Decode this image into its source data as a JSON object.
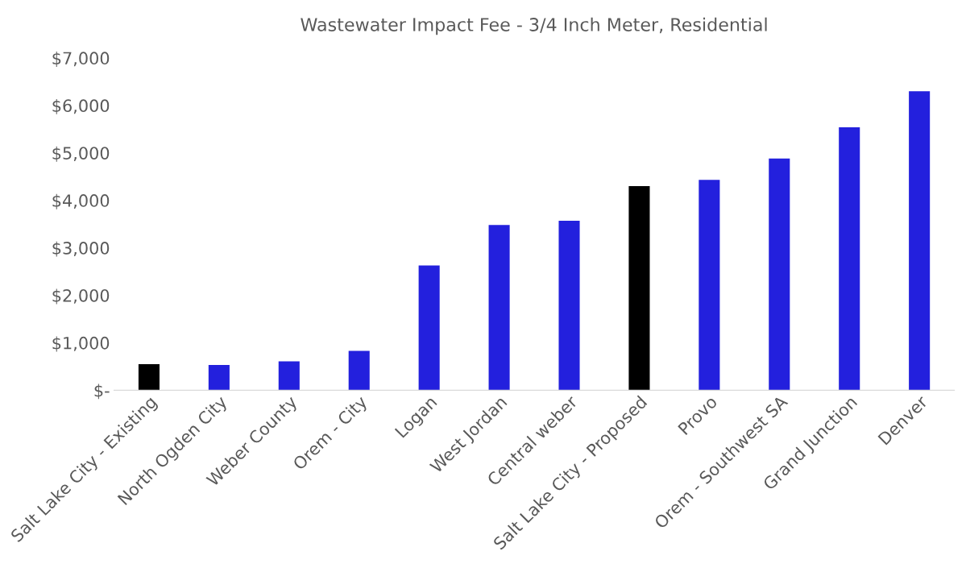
{
  "chart_data": {
    "type": "bar",
    "title": "Wastewater Impact Fee - 3/4 Inch Meter, Residential",
    "categories": [
      "Salt Lake City - Existing",
      "North Ogden City",
      "Weber County",
      "Orem - City",
      "Logan",
      "West Jordan",
      "Central weber",
      "Salt Lake City - Proposed",
      "Provo",
      "Orem - Southwest SA",
      "Grand Junction",
      "Denver"
    ],
    "values": [
      550,
      530,
      610,
      830,
      2630,
      3480,
      3570,
      4300,
      4430,
      4880,
      5540,
      6300
    ],
    "colors": [
      "#000000",
      "#2320dd",
      "#2320dd",
      "#2320dd",
      "#2320dd",
      "#2320dd",
      "#2320dd",
      "#000000",
      "#2320dd",
      "#2320dd",
      "#2320dd",
      "#2320dd"
    ],
    "ylim": [
      0,
      7000
    ],
    "yticks": [
      {
        "value": 0,
        "label": "$-"
      },
      {
        "value": 1000,
        "label": "$1,000"
      },
      {
        "value": 2000,
        "label": "$2,000"
      },
      {
        "value": 3000,
        "label": "$3,000"
      },
      {
        "value": 4000,
        "label": "$4,000"
      },
      {
        "value": 5000,
        "label": "$5,000"
      },
      {
        "value": 6000,
        "label": "$6,000"
      },
      {
        "value": 7000,
        "label": "$7,000"
      }
    ],
    "grid": false,
    "legend": false
  }
}
